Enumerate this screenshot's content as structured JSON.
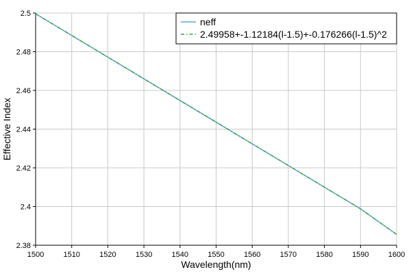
{
  "chart_data": {
    "type": "line",
    "title": "",
    "xlabel": "Wavelength(nm)",
    "ylabel": "Effective Index",
    "xlim": [
      1500,
      1600
    ],
    "ylim": [
      2.38,
      2.5
    ],
    "x_ticks": [
      1500,
      1510,
      1520,
      1530,
      1540,
      1550,
      1560,
      1570,
      1580,
      1590,
      1600
    ],
    "y_ticks": [
      2.38,
      2.4,
      2.42,
      2.44,
      2.46,
      2.48,
      2.5
    ],
    "x_tick_labels": [
      "1500",
      "1510",
      "1520",
      "1530",
      "1540",
      "1550",
      "1560",
      "1570",
      "1580",
      "1590",
      "1600"
    ],
    "y_tick_labels": [
      "2.38",
      "2.4",
      "2.42",
      "2.44",
      "2.46",
      "2.48",
      "2.5"
    ],
    "grid": true,
    "legend_position": "top-right",
    "series": [
      {
        "name": "neff",
        "style": "solid",
        "color": "#5aa9d6",
        "x": [
          1500,
          1510,
          1520,
          1530,
          1540,
          1550,
          1560,
          1570,
          1580,
          1590,
          1600
        ],
        "y": [
          2.4996,
          2.4884,
          2.4772,
          2.466,
          2.4548,
          2.4436,
          2.4324,
          2.4212,
          2.41,
          2.3988,
          2.3856
        ]
      },
      {
        "name": "2.49958+-1.12184(l-1.5)+-0.176266(l-1.5)^2",
        "style": "dash-dot",
        "color": "#3aa142",
        "x": [
          1500,
          1510,
          1520,
          1530,
          1540,
          1550,
          1560,
          1570,
          1580,
          1590,
          1600
        ],
        "y": [
          2.4996,
          2.4884,
          2.4772,
          2.466,
          2.4548,
          2.4436,
          2.4324,
          2.4212,
          2.41,
          2.3988,
          2.3856
        ]
      }
    ]
  }
}
